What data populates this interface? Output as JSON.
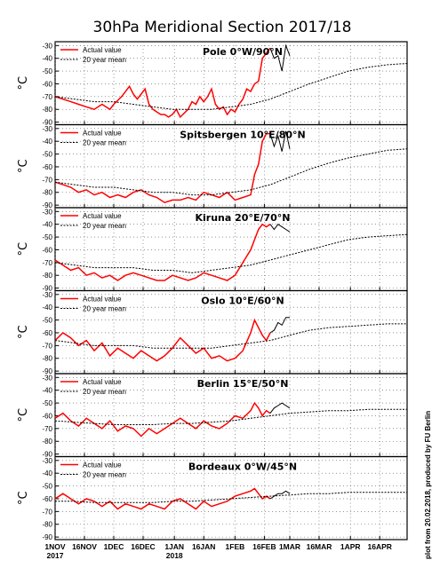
{
  "title": "30hPa Meridional Section 2017/18",
  "credit": "plot from 20.02.2018, produced by FU Berlin",
  "y_axis_label": "°C",
  "colors": {
    "actual": "#ff0000",
    "mean": "#000000",
    "forecast": "#000000"
  },
  "x_axis": {
    "ticks": [
      "1NOV",
      "16NOV",
      "1DEC",
      "16DEC",
      "1JAN",
      "16JAN",
      "1FEB",
      "16FEB",
      "1MAR",
      "16MAR",
      "1APR",
      "16APR"
    ],
    "tick_days": [
      0,
      15,
      30,
      45,
      61,
      76,
      92,
      107,
      120,
      135,
      151,
      166
    ],
    "year_labels": [
      {
        "text": "2017",
        "day": 0
      },
      {
        "text": "2018",
        "day": 61
      }
    ],
    "range_days": [
      0,
      180
    ]
  },
  "chart_data": [
    {
      "type": "line",
      "title": "Pole 0°W/90°N",
      "ylim": [
        -92,
        -27
      ],
      "yticks": [
        -30,
        -40,
        -50,
        -60,
        -70,
        -80,
        -90
      ],
      "legend": [
        "Actual value",
        "20 year mean"
      ],
      "series": [
        {
          "name": "Actual value",
          "style": "solid",
          "x": [
            0,
            4,
            8,
            12,
            16,
            20,
            24,
            26,
            28,
            30,
            34,
            38,
            40,
            42,
            44,
            46,
            48,
            50,
            54,
            56,
            58,
            60,
            62,
            64,
            68,
            70,
            72,
            74,
            76,
            78,
            80,
            82,
            84,
            86,
            88,
            90,
            92,
            94,
            96,
            98,
            100,
            102,
            104,
            106,
            108,
            110
          ],
          "y": [
            -70,
            -72,
            -74,
            -76,
            -78,
            -80,
            -76,
            -78,
            -80,
            -76,
            -70,
            -62,
            -68,
            -72,
            -68,
            -64,
            -76,
            -80,
            -84,
            -84,
            -86,
            -84,
            -80,
            -86,
            -80,
            -74,
            -76,
            -70,
            -74,
            -70,
            -64,
            -76,
            -80,
            -78,
            -84,
            -80,
            -82,
            -76,
            -72,
            -64,
            -66,
            -60,
            -58,
            -40,
            -36,
            -32
          ]
        },
        {
          "name": "Forecast",
          "style": "solid-thin",
          "x": [
            110,
            112,
            114,
            116,
            118,
            120
          ],
          "y": [
            -32,
            -40,
            -38,
            -50,
            -30,
            -38
          ]
        },
        {
          "name": "20 year mean",
          "style": "dotted",
          "x": [
            0,
            10,
            20,
            30,
            40,
            50,
            60,
            70,
            80,
            90,
            100,
            110,
            120,
            130,
            140,
            150,
            160,
            170,
            180
          ],
          "y": [
            -70,
            -72,
            -74,
            -74,
            -76,
            -78,
            -80,
            -80,
            -80,
            -78,
            -76,
            -72,
            -66,
            -60,
            -55,
            -50,
            -47,
            -45,
            -44
          ]
        }
      ]
    },
    {
      "type": "line",
      "title": "Spitsbergen 10°E/80°N",
      "ylim": [
        -92,
        -27
      ],
      "yticks": [
        -30,
        -40,
        -50,
        -60,
        -70,
        -80,
        -90
      ],
      "legend": [
        "Actual value",
        "20 year mean"
      ],
      "series": [
        {
          "name": "Actual value",
          "style": "solid",
          "x": [
            0,
            4,
            8,
            12,
            16,
            20,
            24,
            28,
            32,
            36,
            40,
            44,
            48,
            52,
            56,
            60,
            64,
            68,
            72,
            76,
            80,
            84,
            88,
            92,
            96,
            100,
            102,
            104,
            106,
            108,
            110
          ],
          "y": [
            -72,
            -74,
            -76,
            -80,
            -78,
            -82,
            -80,
            -84,
            -82,
            -84,
            -80,
            -78,
            -82,
            -84,
            -88,
            -86,
            -86,
            -84,
            -86,
            -80,
            -82,
            -84,
            -80,
            -86,
            -84,
            -82,
            -66,
            -58,
            -40,
            -34,
            -34
          ]
        },
        {
          "name": "Forecast",
          "style": "solid-thin",
          "x": [
            110,
            112,
            114,
            116,
            118,
            120
          ],
          "y": [
            -34,
            -44,
            -36,
            -48,
            -32,
            -46
          ]
        },
        {
          "name": "20 year mean",
          "style": "dotted",
          "x": [
            0,
            10,
            20,
            30,
            40,
            50,
            60,
            70,
            80,
            90,
            100,
            110,
            120,
            130,
            140,
            150,
            160,
            170,
            180
          ],
          "y": [
            -72,
            -74,
            -76,
            -76,
            -78,
            -80,
            -80,
            -82,
            -82,
            -80,
            -78,
            -74,
            -68,
            -62,
            -57,
            -53,
            -50,
            -47,
            -46
          ]
        }
      ]
    },
    {
      "type": "line",
      "title": "Kiruna 20°E/70°N",
      "ylim": [
        -92,
        -27
      ],
      "yticks": [
        -30,
        -40,
        -50,
        -60,
        -70,
        -80,
        -90
      ],
      "legend": [
        "Actual value",
        "20 year mean"
      ],
      "series": [
        {
          "name": "Actual value",
          "style": "solid",
          "x": [
            0,
            4,
            8,
            12,
            16,
            20,
            24,
            28,
            32,
            36,
            40,
            44,
            48,
            52,
            56,
            60,
            64,
            68,
            72,
            76,
            80,
            84,
            88,
            92,
            96,
            100,
            102,
            104,
            106,
            108,
            110
          ],
          "y": [
            -68,
            -72,
            -76,
            -74,
            -80,
            -78,
            -82,
            -80,
            -84,
            -80,
            -78,
            -80,
            -82,
            -84,
            -84,
            -80,
            -82,
            -84,
            -82,
            -78,
            -80,
            -82,
            -84,
            -80,
            -70,
            -60,
            -52,
            -44,
            -40,
            -42,
            -40
          ]
        },
        {
          "name": "Forecast",
          "style": "solid-thin",
          "x": [
            110,
            112,
            114,
            116,
            118,
            120
          ],
          "y": [
            -40,
            -44,
            -40,
            -42,
            -44,
            -46
          ]
        },
        {
          "name": "20 year mean",
          "style": "dotted",
          "x": [
            0,
            10,
            20,
            30,
            40,
            50,
            60,
            70,
            80,
            90,
            100,
            110,
            120,
            130,
            140,
            150,
            160,
            170,
            180
          ],
          "y": [
            -70,
            -72,
            -74,
            -74,
            -74,
            -76,
            -76,
            -78,
            -76,
            -74,
            -72,
            -68,
            -64,
            -60,
            -56,
            -52,
            -50,
            -49,
            -48
          ]
        }
      ]
    },
    {
      "type": "line",
      "title": "Oslo 10°E/60°N",
      "ylim": [
        -92,
        -27
      ],
      "yticks": [
        -30,
        -40,
        -50,
        -60,
        -70,
        -80,
        -90
      ],
      "legend": [
        "Actual value",
        "20 year mean"
      ],
      "series": [
        {
          "name": "Actual value",
          "style": "solid",
          "x": [
            0,
            4,
            8,
            12,
            16,
            20,
            24,
            28,
            32,
            36,
            40,
            44,
            48,
            52,
            56,
            60,
            64,
            68,
            72,
            76,
            80,
            84,
            88,
            92,
            96,
            100,
            102,
            104,
            106,
            108,
            110
          ],
          "y": [
            -66,
            -60,
            -64,
            -70,
            -66,
            -74,
            -68,
            -78,
            -72,
            -76,
            -80,
            -74,
            -78,
            -82,
            -78,
            -72,
            -64,
            -70,
            -76,
            -72,
            -80,
            -78,
            -82,
            -80,
            -74,
            -60,
            -50,
            -56,
            -62,
            -66,
            -60
          ]
        },
        {
          "name": "Forecast",
          "style": "solid-thin",
          "x": [
            110,
            112,
            114,
            116,
            118,
            120
          ],
          "y": [
            -60,
            -58,
            -52,
            -54,
            -48,
            -48
          ]
        },
        {
          "name": "20 year mean",
          "style": "dotted",
          "x": [
            0,
            10,
            20,
            30,
            40,
            50,
            60,
            70,
            80,
            90,
            100,
            110,
            120,
            130,
            140,
            150,
            160,
            170,
            180
          ],
          "y": [
            -66,
            -68,
            -70,
            -70,
            -70,
            -72,
            -72,
            -72,
            -72,
            -70,
            -68,
            -66,
            -62,
            -58,
            -56,
            -55,
            -54,
            -53,
            -53
          ]
        }
      ]
    },
    {
      "type": "line",
      "title": "Berlin 15°E/50°N",
      "ylim": [
        -92,
        -27
      ],
      "yticks": [
        -30,
        -40,
        -50,
        -60,
        -70,
        -80,
        -90
      ],
      "legend": [
        "Actual value",
        "20 year mean"
      ],
      "series": [
        {
          "name": "Actual value",
          "style": "solid",
          "x": [
            0,
            4,
            8,
            12,
            16,
            20,
            24,
            28,
            32,
            36,
            40,
            44,
            48,
            52,
            56,
            60,
            64,
            68,
            72,
            76,
            80,
            84,
            88,
            92,
            96,
            100,
            102,
            104,
            106,
            108,
            110
          ],
          "y": [
            -62,
            -58,
            -64,
            -68,
            -62,
            -66,
            -70,
            -64,
            -72,
            -68,
            -70,
            -76,
            -70,
            -74,
            -70,
            -66,
            -62,
            -66,
            -70,
            -64,
            -68,
            -70,
            -66,
            -60,
            -62,
            -56,
            -50,
            -54,
            -60,
            -56,
            -58
          ]
        },
        {
          "name": "Forecast",
          "style": "solid-thin",
          "x": [
            110,
            112,
            114,
            116,
            118,
            120
          ],
          "y": [
            -58,
            -54,
            -52,
            -50,
            -52,
            -54
          ]
        },
        {
          "name": "20 year mean",
          "style": "dotted",
          "x": [
            0,
            10,
            20,
            30,
            40,
            50,
            60,
            70,
            80,
            90,
            100,
            110,
            120,
            130,
            140,
            150,
            160,
            170,
            180
          ],
          "y": [
            -64,
            -65,
            -66,
            -67,
            -67,
            -67,
            -66,
            -66,
            -65,
            -64,
            -62,
            -60,
            -58,
            -57,
            -56,
            -56,
            -55,
            -55,
            -55
          ]
        }
      ]
    },
    {
      "type": "line",
      "title": "Bordeaux 0°W/45°N",
      "ylim": [
        -92,
        -27
      ],
      "yticks": [
        -30,
        -40,
        -50,
        -60,
        -70,
        -80,
        -90
      ],
      "legend": [
        "Actual value",
        "20 year mean"
      ],
      "series": [
        {
          "name": "Actual value",
          "style": "solid",
          "x": [
            0,
            4,
            8,
            12,
            16,
            20,
            24,
            28,
            32,
            36,
            40,
            44,
            48,
            52,
            56,
            60,
            64,
            68,
            72,
            76,
            80,
            84,
            88,
            92,
            96,
            100,
            102,
            104,
            106,
            108,
            110
          ],
          "y": [
            -60,
            -56,
            -60,
            -64,
            -60,
            -62,
            -66,
            -62,
            -68,
            -64,
            -66,
            -68,
            -64,
            -66,
            -68,
            -62,
            -60,
            -64,
            -68,
            -62,
            -66,
            -64,
            -62,
            -58,
            -56,
            -54,
            -52,
            -56,
            -60,
            -58,
            -60
          ]
        },
        {
          "name": "Forecast",
          "style": "solid-thin",
          "x": [
            110,
            112,
            114,
            116,
            118,
            120
          ],
          "y": [
            -60,
            -58,
            -56,
            -56,
            -54,
            -56
          ]
        },
        {
          "name": "20 year mean",
          "style": "dotted",
          "x": [
            0,
            10,
            20,
            30,
            40,
            50,
            60,
            70,
            80,
            90,
            100,
            110,
            120,
            130,
            140,
            150,
            160,
            170,
            180
          ],
          "y": [
            -62,
            -62,
            -63,
            -63,
            -63,
            -63,
            -62,
            -62,
            -61,
            -60,
            -59,
            -58,
            -57,
            -56,
            -56,
            -55,
            -55,
            -55,
            -55
          ]
        }
      ]
    }
  ]
}
